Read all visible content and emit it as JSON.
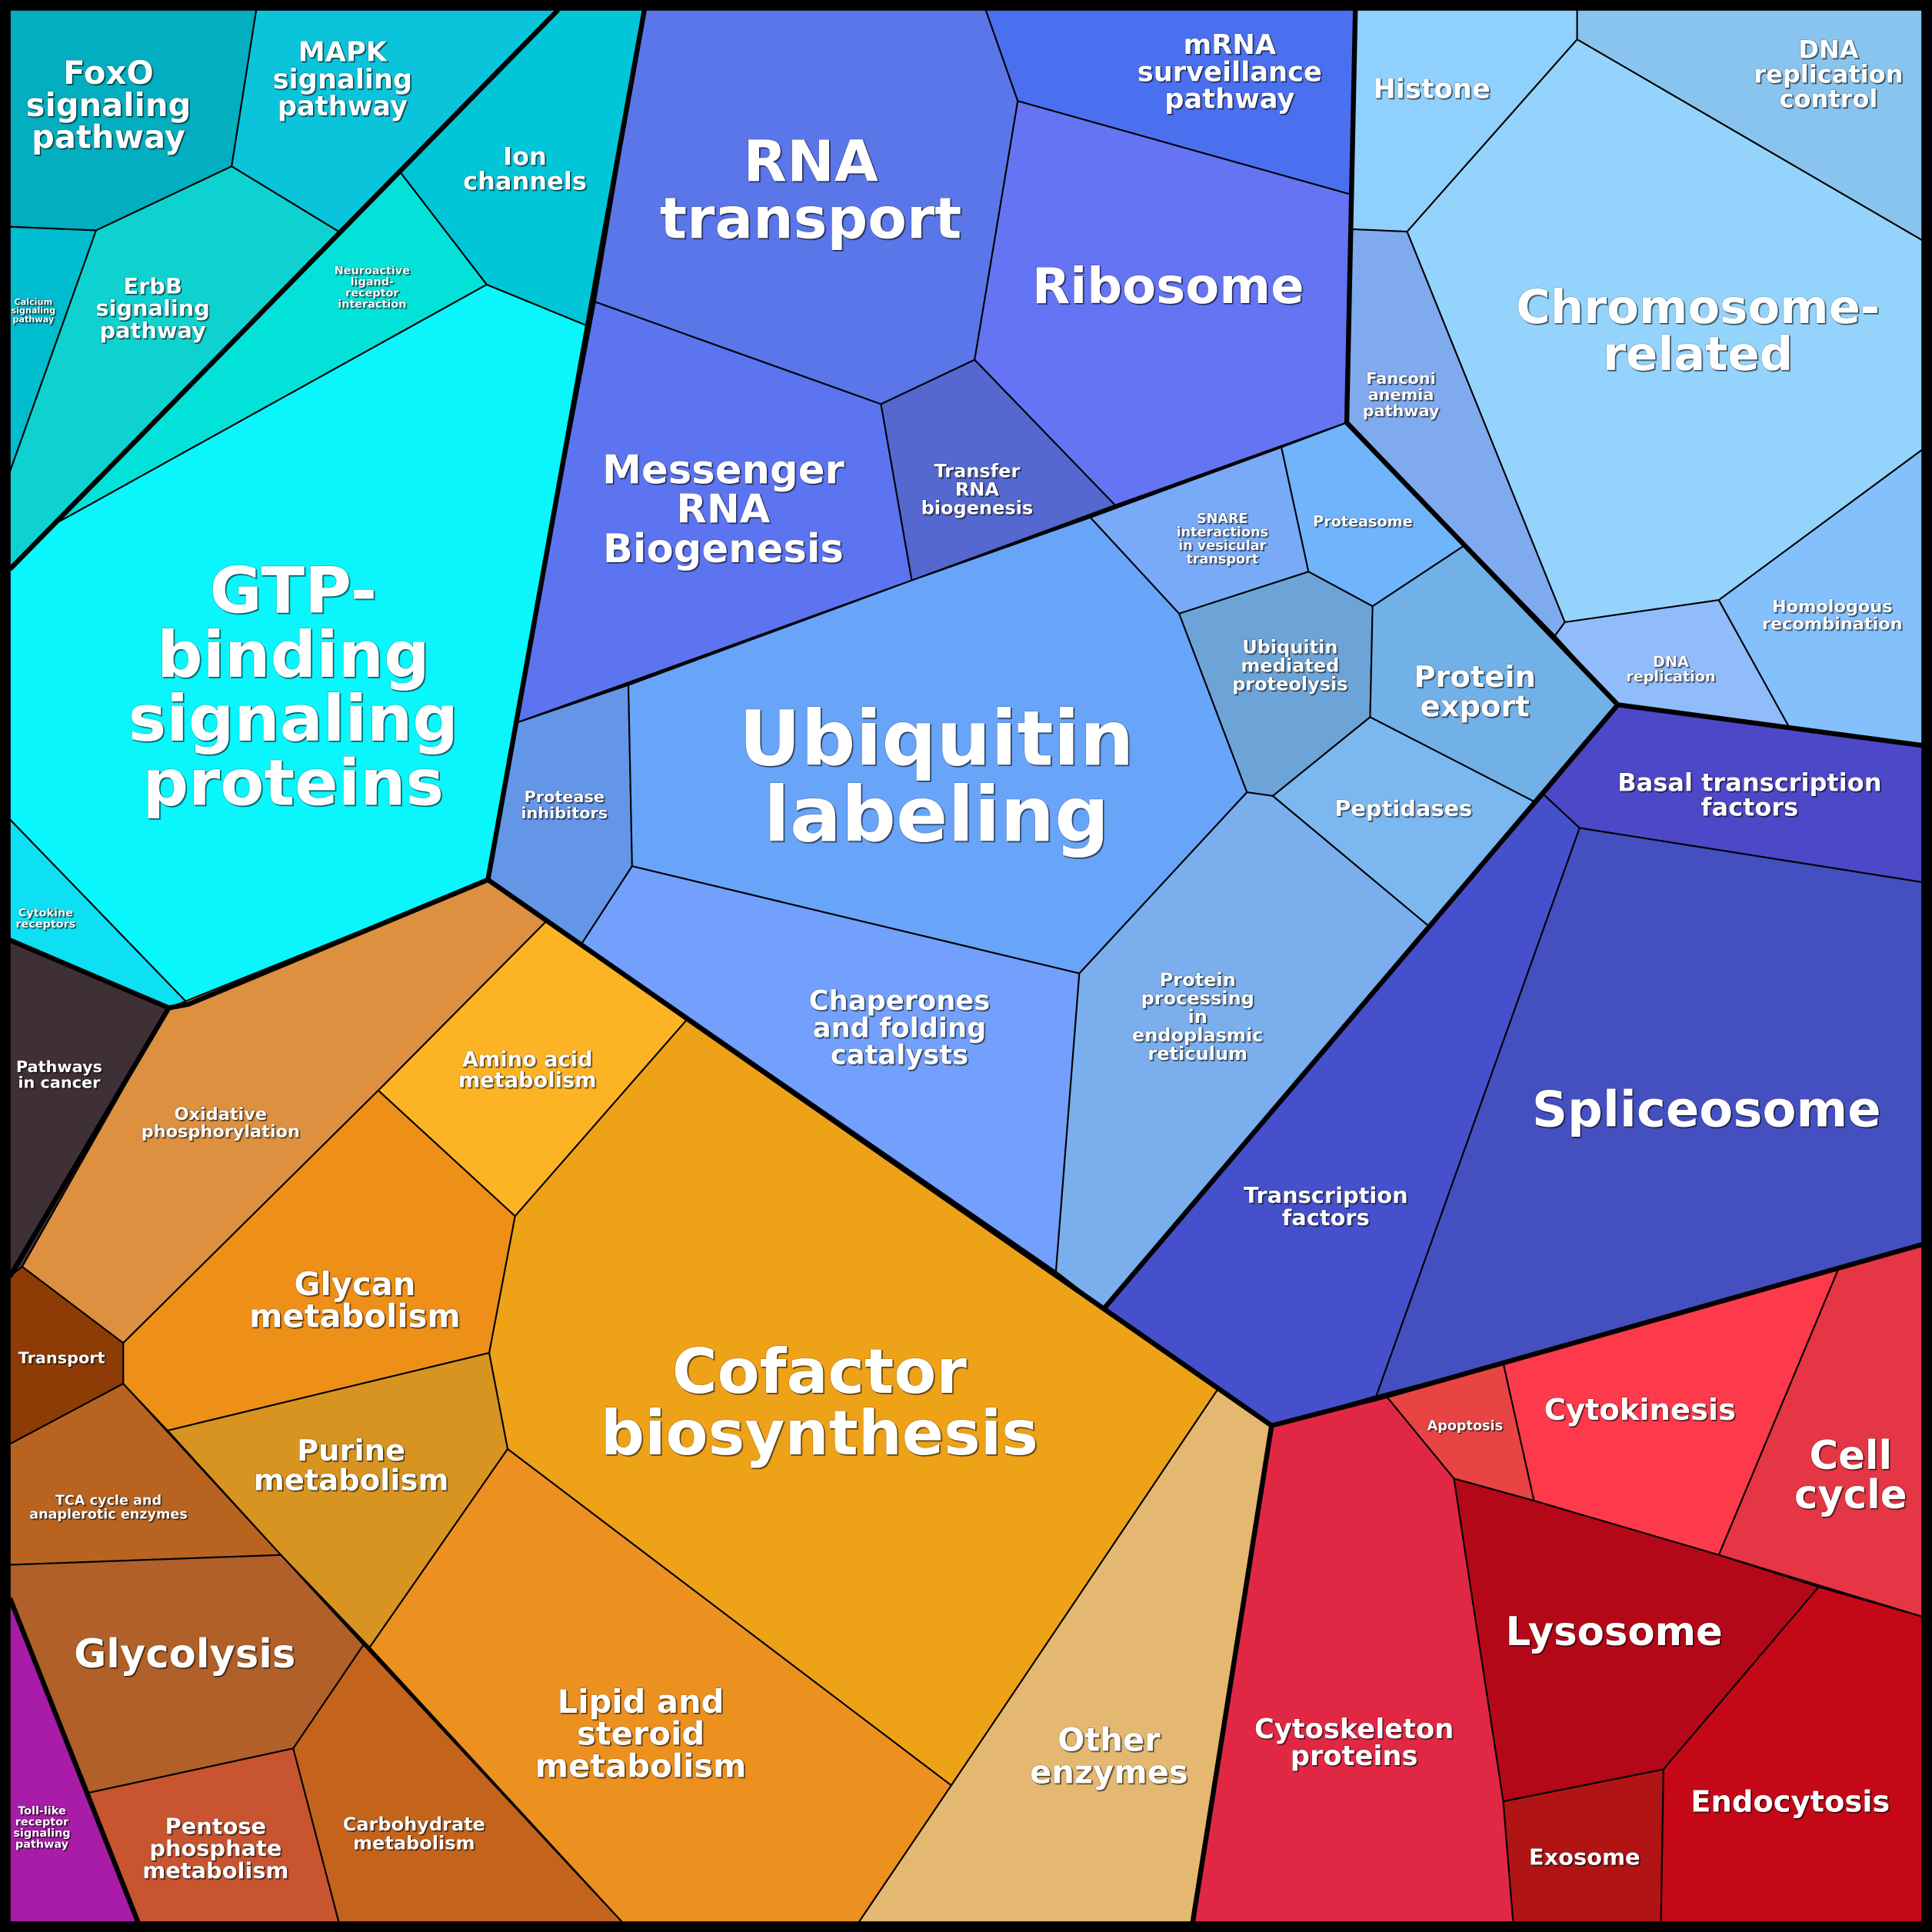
{
  "cells": [
    {
      "id": "foxo",
      "lines": [
        "FoxO",
        "signaling",
        "pathway"
      ],
      "color": "#02aebf"
    },
    {
      "id": "mapk",
      "lines": [
        "MAPK",
        "signaling",
        "pathway"
      ],
      "color": "#0ac4dc"
    },
    {
      "id": "calcium",
      "lines": [
        "Calcium",
        "signaling",
        "pathway"
      ],
      "color": "#00bccf"
    },
    {
      "id": "erbb",
      "lines": [
        "ErbB",
        "signaling",
        "pathway"
      ],
      "color": "#0ed2d0"
    },
    {
      "id": "ion",
      "lines": [
        "Ion",
        "channels"
      ],
      "color": "#00c6d8"
    },
    {
      "id": "neuro",
      "lines": [
        "Neuroactive",
        "ligand-",
        "receptor",
        "interaction"
      ],
      "color": "#02e2d8"
    },
    {
      "id": "gtp",
      "lines": [
        "GTP-",
        "binding",
        "signaling",
        "proteins"
      ],
      "color": "#08f6fc"
    },
    {
      "id": "cytokine",
      "lines": [
        "Cytokine",
        "receptors"
      ],
      "color": "#0ce0f2"
    },
    {
      "id": "rnatransport",
      "lines": [
        "RNA",
        "transport"
      ],
      "color": "#5a76e8"
    },
    {
      "id": "mrnasurv",
      "lines": [
        "mRNA",
        "surveillance",
        "pathway"
      ],
      "color": "#4a70f0"
    },
    {
      "id": "ribosome",
      "lines": [
        "Ribosome"
      ],
      "color": "#6474f2"
    },
    {
      "id": "messenger",
      "lines": [
        "Messenger",
        "RNA",
        "Biogenesis"
      ],
      "color": "#5c74f0"
    },
    {
      "id": "trna",
      "lines": [
        "Transfer",
        "RNA",
        "biogenesis"
      ],
      "color": "#5468d0"
    },
    {
      "id": "proteaseinh",
      "lines": [
        "Protease",
        "inhibitors"
      ],
      "color": "#6496e8"
    },
    {
      "id": "ubiquitin",
      "lines": [
        "Ubiquitin",
        "labeling"
      ],
      "color": "#68a4f8"
    },
    {
      "id": "snare",
      "lines": [
        "SNARE",
        "interactions",
        "in vesicular",
        "transport"
      ],
      "color": "#78aaf8"
    },
    {
      "id": "proteasome",
      "lines": [
        "Proteasome"
      ],
      "color": "#70b4fc"
    },
    {
      "id": "ubmed",
      "lines": [
        "Ubiquitin",
        "mediated",
        "proteolysis"
      ],
      "color": "#6ca4d8"
    },
    {
      "id": "protexport",
      "lines": [
        "Protein",
        "export"
      ],
      "color": "#72b0e8"
    },
    {
      "id": "peptidases",
      "lines": [
        "Peptidases"
      ],
      "color": "#7cb8f0"
    },
    {
      "id": "chaperones",
      "lines": [
        "Chaperones",
        "and folding",
        "catalysts"
      ],
      "color": "#72a0fc"
    },
    {
      "id": "protproc",
      "lines": [
        "Protein",
        "processing",
        "in",
        "endoplasmic",
        "reticulum"
      ],
      "color": "#7aaeec"
    },
    {
      "id": "basal",
      "lines": [
        "Basal transcription",
        "factors"
      ],
      "color": "#4c48c8"
    },
    {
      "id": "tf",
      "lines": [
        "Transcription",
        "factors"
      ],
      "color": "#4650cc"
    },
    {
      "id": "spliceosome",
      "lines": [
        "Spliceosome"
      ],
      "color": "#4450c0"
    },
    {
      "id": "histone",
      "lines": [
        "Histone"
      ],
      "color": "#90d0fc"
    },
    {
      "id": "dnarepctl",
      "lines": [
        "DNA",
        "replication",
        "control"
      ],
      "color": "#88c4ee"
    },
    {
      "id": "chromosome",
      "lines": [
        "Chromosome-",
        "related"
      ],
      "color": "#94d4fc"
    },
    {
      "id": "fanconi",
      "lines": [
        "Fanconi",
        "anemia",
        "pathway"
      ],
      "color": "#80aaee"
    },
    {
      "id": "dnarep",
      "lines": [
        "DNA",
        "replication"
      ],
      "color": "#90bcfc"
    },
    {
      "id": "homrec",
      "lines": [
        "Homologous",
        "recombination"
      ],
      "color": "#84c0fc"
    },
    {
      "id": "apoptosis",
      "lines": [
        "Apoptosis"
      ],
      "color": "#e84444"
    },
    {
      "id": "cytokinesis",
      "lines": [
        "Cytokinesis"
      ],
      "color": "#fc3a4c"
    },
    {
      "id": "cellcycle",
      "lines": [
        "Cell",
        "cycle"
      ],
      "color": "#e43644"
    },
    {
      "id": "lysosome",
      "lines": [
        "Lysosome"
      ],
      "color": "#b40818"
    },
    {
      "id": "endocytosis",
      "lines": [
        "Endocytosis"
      ],
      "color": "#c40818"
    },
    {
      "id": "exosome",
      "lines": [
        "Exosome"
      ],
      "color": "#b01414"
    },
    {
      "id": "cytoskeleton",
      "lines": [
        "Cytoskeleton",
        "proteins"
      ],
      "color": "#e02844"
    },
    {
      "id": "otherenz",
      "lines": [
        "Other",
        "enzymes"
      ],
      "color": "#e4b870"
    },
    {
      "id": "cofactor",
      "lines": [
        "Cofactor",
        "biosynthesis"
      ],
      "color": "#eea218"
    },
    {
      "id": "aminoacid",
      "lines": [
        "Amino acid",
        "metabolism"
      ],
      "color": "#fcb424"
    },
    {
      "id": "oxphos",
      "lines": [
        "Oxidative",
        "phosphorylation"
      ],
      "color": "#dc9040"
    },
    {
      "id": "glycan",
      "lines": [
        "Glycan",
        "metabolism"
      ],
      "color": "#ee9018"
    },
    {
      "id": "purine",
      "lines": [
        "Purine",
        "metabolism"
      ],
      "color": "#d89420"
    },
    {
      "id": "lipid",
      "lines": [
        "Lipid and",
        "steroid",
        "metabolism"
      ],
      "color": "#ec9020"
    },
    {
      "id": "cancer",
      "lines": [
        "Pathways",
        "in cancer"
      ],
      "color": "#3f3038"
    },
    {
      "id": "transport",
      "lines": [
        "Transport"
      ],
      "color": "#8c3c04"
    },
    {
      "id": "tca",
      "lines": [
        "TCA cycle and",
        "anaplerotic enzymes"
      ],
      "color": "#b86420"
    },
    {
      "id": "glycolysis",
      "lines": [
        "Glycolysis"
      ],
      "color": "#b06028"
    },
    {
      "id": "tolllike",
      "lines": [
        "Toll-like",
        "receptor",
        "signaling",
        "pathway"
      ],
      "color": "#a81ca8"
    },
    {
      "id": "pentose",
      "lines": [
        "Pentose",
        "phosphate",
        "metabolism"
      ],
      "color": "#c85430"
    },
    {
      "id": "carbohydrate",
      "lines": [
        "Carbohydrate",
        "metabolism"
      ],
      "color": "#c4641c"
    }
  ]
}
